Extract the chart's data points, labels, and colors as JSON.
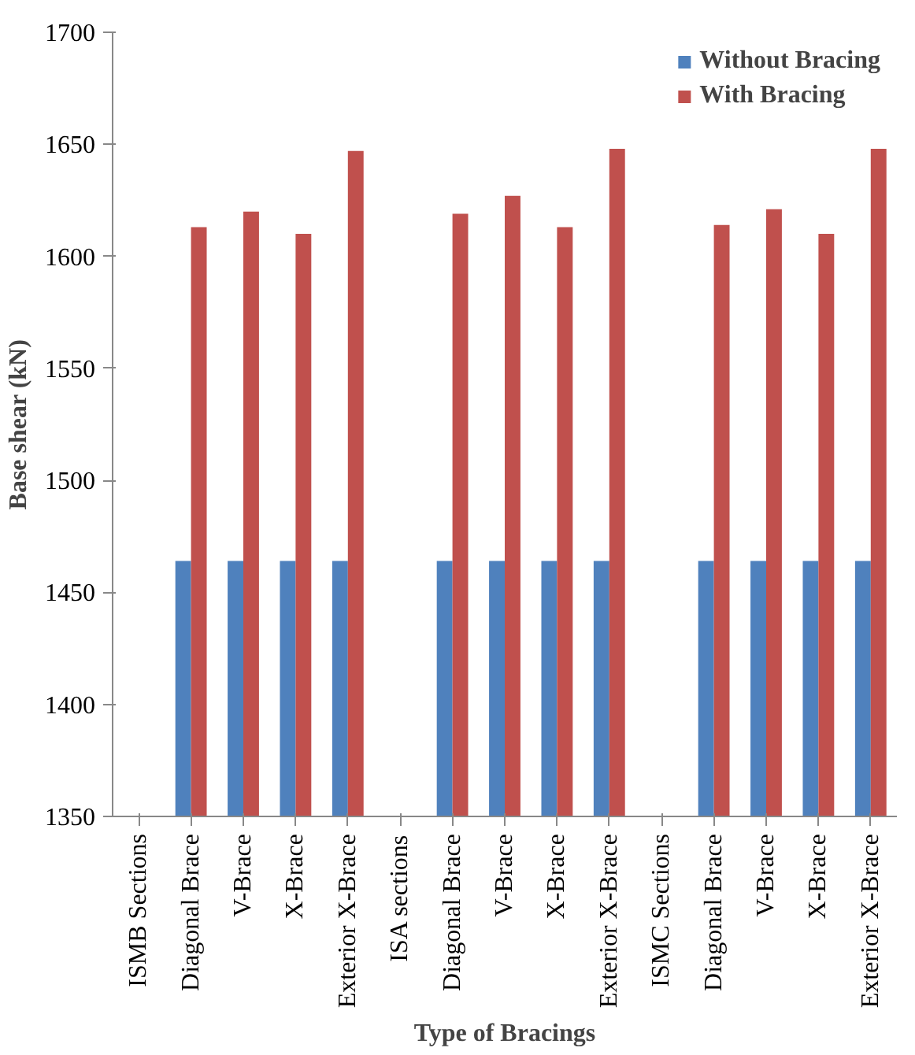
{
  "chart_data": {
    "type": "bar",
    "xlabel": "Type of Bracings",
    "ylabel": "Base shear (kN)",
    "categories": [
      "ISMB Sections",
      "Diagonal Brace",
      "V-Brace",
      "X-Brace",
      "Exterior X-Brace",
      "ISA sections",
      "Diagonal Brace",
      "V-Brace",
      "X-Brace",
      "Exterior X-Brace",
      "ISMC Sections",
      "Diagonal Brace",
      "V-Brace",
      "X-Brace",
      "Exterior X-Brace"
    ],
    "series": [
      {
        "name": "Without Bracing",
        "color": "#4f81bd",
        "values": [
          null,
          1464,
          1464,
          1464,
          1464,
          null,
          1464,
          1464,
          1464,
          1464,
          null,
          1464,
          1464,
          1464,
          1464
        ]
      },
      {
        "name": "With Bracing",
        "color": "#c0504d",
        "values": [
          null,
          1613,
          1620,
          1610,
          1647,
          null,
          1619,
          1627,
          1613,
          1648,
          null,
          1614,
          1621,
          1610,
          1648
        ]
      }
    ],
    "ylim": [
      1350,
      1700
    ],
    "yticks": [
      1350,
      1400,
      1450,
      1500,
      1550,
      1600,
      1650,
      1700
    ],
    "grid": false,
    "legend": "top right"
  }
}
